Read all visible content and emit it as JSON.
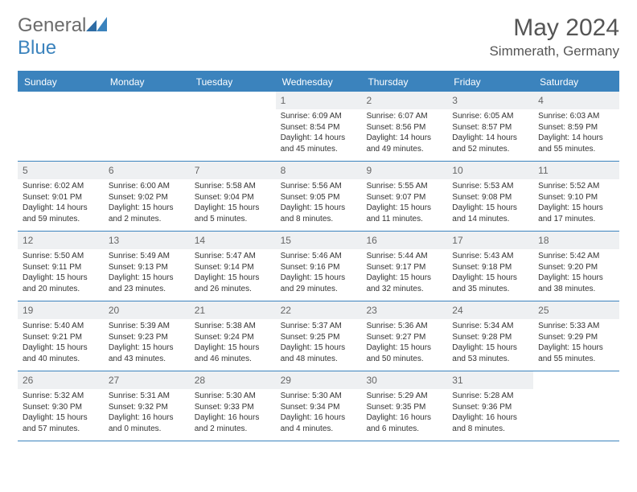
{
  "logo": {
    "text1": "General",
    "text2": "Blue"
  },
  "title": "May 2024",
  "location": "Simmerath, Germany",
  "weekdays": [
    "Sunday",
    "Monday",
    "Tuesday",
    "Wednesday",
    "Thursday",
    "Friday",
    "Saturday"
  ],
  "colors": {
    "header_bg": "#3b83bd",
    "daynum_bg": "#eef0f2",
    "text": "#333333",
    "title": "#555555"
  },
  "weeks": [
    [
      {
        "n": "",
        "sr": "",
        "ss": "",
        "dl": ""
      },
      {
        "n": "",
        "sr": "",
        "ss": "",
        "dl": ""
      },
      {
        "n": "",
        "sr": "",
        "ss": "",
        "dl": ""
      },
      {
        "n": "1",
        "sr": "Sunrise: 6:09 AM",
        "ss": "Sunset: 8:54 PM",
        "dl": "Daylight: 14 hours and 45 minutes."
      },
      {
        "n": "2",
        "sr": "Sunrise: 6:07 AM",
        "ss": "Sunset: 8:56 PM",
        "dl": "Daylight: 14 hours and 49 minutes."
      },
      {
        "n": "3",
        "sr": "Sunrise: 6:05 AM",
        "ss": "Sunset: 8:57 PM",
        "dl": "Daylight: 14 hours and 52 minutes."
      },
      {
        "n": "4",
        "sr": "Sunrise: 6:03 AM",
        "ss": "Sunset: 8:59 PM",
        "dl": "Daylight: 14 hours and 55 minutes."
      }
    ],
    [
      {
        "n": "5",
        "sr": "Sunrise: 6:02 AM",
        "ss": "Sunset: 9:01 PM",
        "dl": "Daylight: 14 hours and 59 minutes."
      },
      {
        "n": "6",
        "sr": "Sunrise: 6:00 AM",
        "ss": "Sunset: 9:02 PM",
        "dl": "Daylight: 15 hours and 2 minutes."
      },
      {
        "n": "7",
        "sr": "Sunrise: 5:58 AM",
        "ss": "Sunset: 9:04 PM",
        "dl": "Daylight: 15 hours and 5 minutes."
      },
      {
        "n": "8",
        "sr": "Sunrise: 5:56 AM",
        "ss": "Sunset: 9:05 PM",
        "dl": "Daylight: 15 hours and 8 minutes."
      },
      {
        "n": "9",
        "sr": "Sunrise: 5:55 AM",
        "ss": "Sunset: 9:07 PM",
        "dl": "Daylight: 15 hours and 11 minutes."
      },
      {
        "n": "10",
        "sr": "Sunrise: 5:53 AM",
        "ss": "Sunset: 9:08 PM",
        "dl": "Daylight: 15 hours and 14 minutes."
      },
      {
        "n": "11",
        "sr": "Sunrise: 5:52 AM",
        "ss": "Sunset: 9:10 PM",
        "dl": "Daylight: 15 hours and 17 minutes."
      }
    ],
    [
      {
        "n": "12",
        "sr": "Sunrise: 5:50 AM",
        "ss": "Sunset: 9:11 PM",
        "dl": "Daylight: 15 hours and 20 minutes."
      },
      {
        "n": "13",
        "sr": "Sunrise: 5:49 AM",
        "ss": "Sunset: 9:13 PM",
        "dl": "Daylight: 15 hours and 23 minutes."
      },
      {
        "n": "14",
        "sr": "Sunrise: 5:47 AM",
        "ss": "Sunset: 9:14 PM",
        "dl": "Daylight: 15 hours and 26 minutes."
      },
      {
        "n": "15",
        "sr": "Sunrise: 5:46 AM",
        "ss": "Sunset: 9:16 PM",
        "dl": "Daylight: 15 hours and 29 minutes."
      },
      {
        "n": "16",
        "sr": "Sunrise: 5:44 AM",
        "ss": "Sunset: 9:17 PM",
        "dl": "Daylight: 15 hours and 32 minutes."
      },
      {
        "n": "17",
        "sr": "Sunrise: 5:43 AM",
        "ss": "Sunset: 9:18 PM",
        "dl": "Daylight: 15 hours and 35 minutes."
      },
      {
        "n": "18",
        "sr": "Sunrise: 5:42 AM",
        "ss": "Sunset: 9:20 PM",
        "dl": "Daylight: 15 hours and 38 minutes."
      }
    ],
    [
      {
        "n": "19",
        "sr": "Sunrise: 5:40 AM",
        "ss": "Sunset: 9:21 PM",
        "dl": "Daylight: 15 hours and 40 minutes."
      },
      {
        "n": "20",
        "sr": "Sunrise: 5:39 AM",
        "ss": "Sunset: 9:23 PM",
        "dl": "Daylight: 15 hours and 43 minutes."
      },
      {
        "n": "21",
        "sr": "Sunrise: 5:38 AM",
        "ss": "Sunset: 9:24 PM",
        "dl": "Daylight: 15 hours and 46 minutes."
      },
      {
        "n": "22",
        "sr": "Sunrise: 5:37 AM",
        "ss": "Sunset: 9:25 PM",
        "dl": "Daylight: 15 hours and 48 minutes."
      },
      {
        "n": "23",
        "sr": "Sunrise: 5:36 AM",
        "ss": "Sunset: 9:27 PM",
        "dl": "Daylight: 15 hours and 50 minutes."
      },
      {
        "n": "24",
        "sr": "Sunrise: 5:34 AM",
        "ss": "Sunset: 9:28 PM",
        "dl": "Daylight: 15 hours and 53 minutes."
      },
      {
        "n": "25",
        "sr": "Sunrise: 5:33 AM",
        "ss": "Sunset: 9:29 PM",
        "dl": "Daylight: 15 hours and 55 minutes."
      }
    ],
    [
      {
        "n": "26",
        "sr": "Sunrise: 5:32 AM",
        "ss": "Sunset: 9:30 PM",
        "dl": "Daylight: 15 hours and 57 minutes."
      },
      {
        "n": "27",
        "sr": "Sunrise: 5:31 AM",
        "ss": "Sunset: 9:32 PM",
        "dl": "Daylight: 16 hours and 0 minutes."
      },
      {
        "n": "28",
        "sr": "Sunrise: 5:30 AM",
        "ss": "Sunset: 9:33 PM",
        "dl": "Daylight: 16 hours and 2 minutes."
      },
      {
        "n": "29",
        "sr": "Sunrise: 5:30 AM",
        "ss": "Sunset: 9:34 PM",
        "dl": "Daylight: 16 hours and 4 minutes."
      },
      {
        "n": "30",
        "sr": "Sunrise: 5:29 AM",
        "ss": "Sunset: 9:35 PM",
        "dl": "Daylight: 16 hours and 6 minutes."
      },
      {
        "n": "31",
        "sr": "Sunrise: 5:28 AM",
        "ss": "Sunset: 9:36 PM",
        "dl": "Daylight: 16 hours and 8 minutes."
      },
      {
        "n": "",
        "sr": "",
        "ss": "",
        "dl": ""
      }
    ]
  ]
}
